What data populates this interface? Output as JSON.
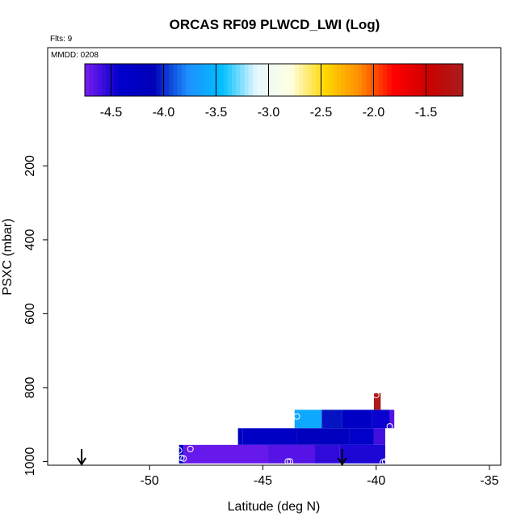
{
  "chart_data": {
    "type": "heatmap",
    "title": "ORCAS RF09 PLWCD_LWI (Log)",
    "flights_label": "Flts: 9",
    "date_label": "MMDD: 0208",
    "xlabel": "Latitude (deg N)",
    "ylabel": "PSXC (mbar)",
    "xlim": [
      -54.5,
      -34.5
    ],
    "ylim": [
      1010,
      -120
    ],
    "xticks": [
      -50,
      -45,
      -40,
      -35
    ],
    "yticks": [
      200,
      400,
      600,
      800,
      1000
    ],
    "colorbar": {
      "range": [
        -4.75,
        -1.15
      ],
      "ticks": [
        -4.5,
        -4.0,
        -3.5,
        -3.0,
        -2.5,
        -2.0,
        -1.5
      ],
      "tick_labels": [
        "-4.5",
        "-4.0",
        "-3.5",
        "-3.0",
        "-2.5",
        "-2.0",
        "-1.5"
      ],
      "colors": [
        "#7a1cf0",
        "#0000cc",
        "#0000b8",
        "#1e90ff",
        "#00bfff",
        "#e8f8ff",
        "#ffffe0",
        "#ffd700",
        "#ff8c00",
        "#ff0000",
        "#cc0000",
        "#a81e1e"
      ]
    },
    "bands": [
      {
        "p_top": 815,
        "p_bottom": 860,
        "segments": [
          {
            "x0": -40.1,
            "x1": -39.8,
            "v": -1.2
          }
        ]
      },
      {
        "p_top": 860,
        "p_bottom": 910,
        "segments": [
          {
            "x0": -43.6,
            "x1": -42.4,
            "v": -3.6
          },
          {
            "x0": -42.4,
            "x1": -41.5,
            "v": -4.05
          },
          {
            "x0": -41.5,
            "x1": -40.2,
            "v": -4.3
          },
          {
            "x0": -40.2,
            "x1": -39.4,
            "v": -4.45
          },
          {
            "x0": -39.4,
            "x1": -39.2,
            "v": -4.65
          }
        ]
      },
      {
        "p_top": 910,
        "p_bottom": 955,
        "segments": [
          {
            "x0": -46.1,
            "x1": -45.9,
            "v": -4.2
          },
          {
            "x0": -45.9,
            "x1": -43.5,
            "v": -4.3
          },
          {
            "x0": -43.5,
            "x1": -41.2,
            "v": -4.2
          },
          {
            "x0": -41.2,
            "x1": -40.1,
            "v": -4.35
          },
          {
            "x0": -40.1,
            "x1": -39.6,
            "v": -4.6
          }
        ]
      },
      {
        "p_top": 955,
        "p_bottom": 1005,
        "segments": [
          {
            "x0": -48.7,
            "x1": -48.5,
            "v": -4.3
          },
          {
            "x0": -48.5,
            "x1": -44.8,
            "v": -4.7
          },
          {
            "x0": -44.8,
            "x1": -42.7,
            "v": -4.65
          },
          {
            "x0": -42.7,
            "x1": -41.6,
            "v": -4.55
          },
          {
            "x0": -41.6,
            "x1": -39.6,
            "v": -4.5
          }
        ]
      }
    ],
    "markers": [
      {
        "x": -48.7,
        "y": 970
      },
      {
        "x": -48.2,
        "y": 966
      },
      {
        "x": -48.6,
        "y": 990
      },
      {
        "x": -48.5,
        "y": 992
      },
      {
        "x": -43.9,
        "y": 1000
      },
      {
        "x": -43.8,
        "y": 1000
      },
      {
        "x": -39.7,
        "y": 1002
      },
      {
        "x": -39.6,
        "y": 1000
      },
      {
        "x": -43.5,
        "y": 878
      },
      {
        "x": -40.0,
        "y": 820
      },
      {
        "x": -39.4,
        "y": 905
      }
    ],
    "arrows": [
      {
        "x": -53.0
      },
      {
        "x": -41.5
      }
    ]
  }
}
